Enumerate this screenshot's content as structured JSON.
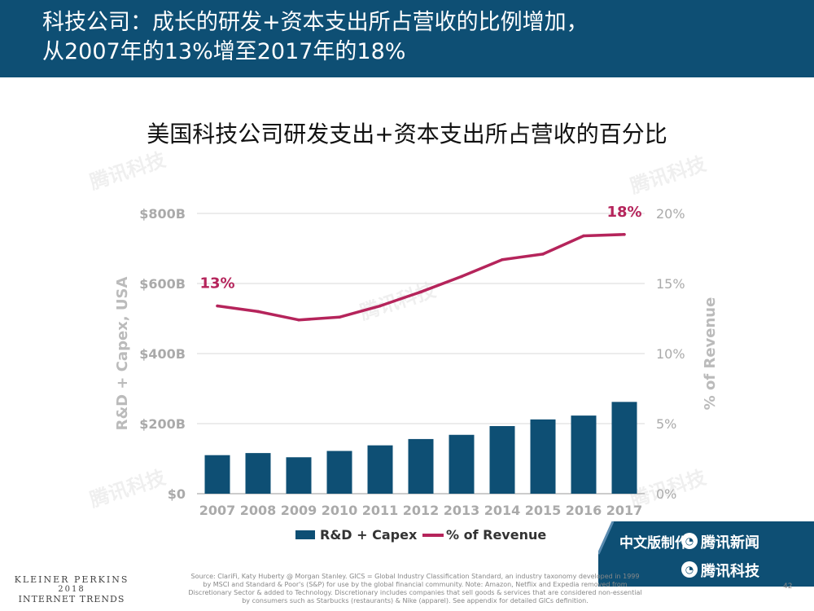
{
  "header": {
    "title_line_1": "科技公司：成长的研发+资本支出所占营收的比例增加，",
    "title_line_2": "从2007年的13%增至2017年的18%"
  },
  "chart_data": {
    "type": "bar",
    "title": "美国科技公司研发支出+资本支出所占营收的百分比",
    "categories": [
      "2007",
      "2008",
      "2009",
      "2010",
      "2011",
      "2012",
      "2013",
      "2014",
      "2015",
      "2016",
      "2017"
    ],
    "series": [
      {
        "name": "R&D + Capex",
        "type": "bar",
        "axis": "left",
        "color": "#0e4f74",
        "values": [
          110,
          116,
          104,
          122,
          138,
          156,
          168,
          193,
          212,
          223,
          262
        ]
      },
      {
        "name": "% of Revenue",
        "type": "line",
        "axis": "right",
        "color": "#b5245b",
        "values": [
          13.4,
          13.0,
          12.4,
          12.6,
          13.4,
          14.4,
          15.5,
          16.7,
          17.1,
          18.4,
          18.5
        ]
      }
    ],
    "ylabel": "R&D + Capex, USA",
    "ylabel_right": "% of Revenue",
    "ylim": [
      0,
      800
    ],
    "ylim_right": [
      0,
      20
    ],
    "yticks": [
      "$0",
      "$200B",
      "$400B",
      "$600B",
      "$800B"
    ],
    "yticks_right": [
      "0%",
      "5%",
      "10%",
      "15%",
      "20%"
    ],
    "annotations": [
      {
        "category": "2007",
        "text": "13%"
      },
      {
        "category": "2017",
        "text": "18%"
      }
    ],
    "grid": "horizontal",
    "legend_position": "bottom"
  },
  "watermark_text": "腾讯科技",
  "credit": {
    "made_by": "中文版制作:",
    "news": "腾讯新闻",
    "tech": "腾讯科技",
    "background_color": "#0e4f74"
  },
  "brand": {
    "line_1": "KLEINER PERKINS",
    "line_2": "2018",
    "line_3": "INTERNET TRENDS"
  },
  "source_text": "Source: ClariFi, Katy Huberty @ Morgan Stanley. GICS = Global Industry Classification Standard, an industry taxonomy developed in 1999 by MSCI and Standard & Poor's (S&P) for use by the global financial community. Note: Amazon, Netflix and Expedia removed from Discretionary Sector & added to Technology. Discretionary includes companies that sell goods & services that are considered non-essential by consumers such as Starbucks (restaurants) & Nike (apparel). See appendix for detailed GICs definition.",
  "page_number": "42"
}
